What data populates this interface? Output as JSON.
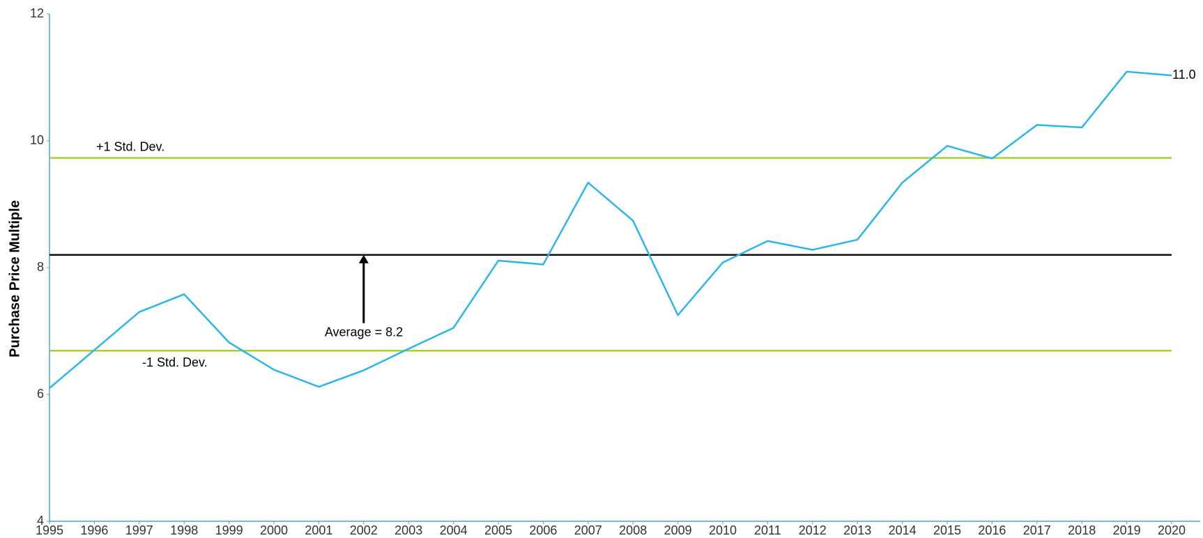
{
  "chart_data": {
    "type": "line",
    "y_label": "Purchase Price Multiple",
    "x": [
      1995,
      1996,
      1997,
      1998,
      1999,
      2000,
      2001,
      2002,
      2003,
      2004,
      2005,
      2006,
      2007,
      2008,
      2009,
      2010,
      2011,
      2012,
      2013,
      2014,
      2015,
      2016,
      2017,
      2018,
      2019,
      2020
    ],
    "series": [
      {
        "color": "#29b6ea",
        "values": [
          6.1,
          6.7,
          7.3,
          7.58,
          6.82,
          6.39,
          6.12,
          6.38,
          6.72,
          7.05,
          8.11,
          8.05,
          9.34,
          8.74,
          7.25,
          8.08,
          8.42,
          8.28,
          8.44,
          9.34,
          9.92,
          9.72,
          10.25,
          10.21,
          11.09,
          11.03
        ],
        "value_labels": [
          null,
          null,
          null,
          null,
          null,
          null,
          null,
          null,
          null,
          null,
          null,
          null,
          null,
          null,
          null,
          null,
          null,
          null,
          null,
          null,
          null,
          null,
          null,
          null,
          null,
          "11.0"
        ]
      }
    ],
    "reference_lines": [
      {
        "label": "+1 Std. Dev.",
        "value": 9.73,
        "color": "#a8cd3c"
      },
      {
        "label": "Average = 8.2",
        "value": 8.2,
        "color": "#111111"
      },
      {
        "label": "-1 Std. Dev.",
        "value": 6.69,
        "color": "#a8cd3c"
      }
    ],
    "xlim": [
      1995,
      2020
    ],
    "xticks": [
      1995,
      1996,
      1997,
      1998,
      1999,
      2000,
      2001,
      2002,
      2003,
      2004,
      2005,
      2006,
      2007,
      2008,
      2009,
      2010,
      2011,
      2012,
      2013,
      2014,
      2015,
      2016,
      2017,
      2018,
      2019,
      2020
    ],
    "ylim": [
      4,
      12
    ],
    "yticks": [
      4,
      6,
      8,
      10,
      12
    ],
    "axis_color": "#4aa3d8",
    "grid": false
  }
}
